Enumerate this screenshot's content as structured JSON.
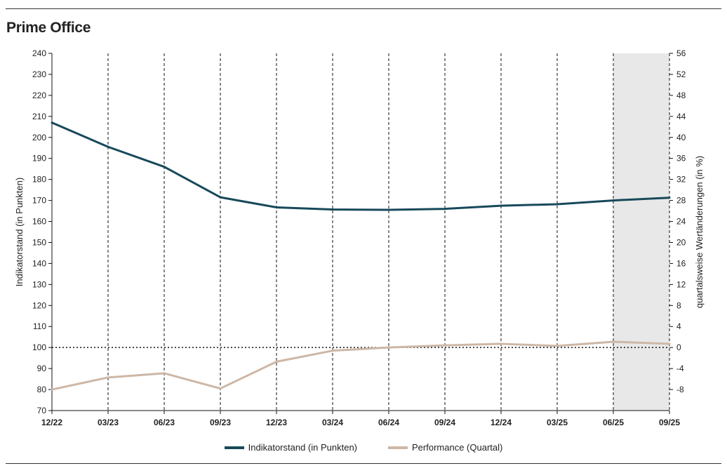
{
  "title": "Prime Office",
  "colors": {
    "index": "#17495a",
    "performance": "#cdb7a6",
    "shade": "#e8e8e8"
  },
  "chart_data": {
    "type": "line",
    "categories": [
      "12/22",
      "03/23",
      "06/23",
      "09/23",
      "12/23",
      "03/24",
      "06/24",
      "09/24",
      "12/24",
      "03/25",
      "06/25",
      "09/25"
    ],
    "yticks_left": [
      "240",
      "230",
      "220",
      "210",
      "200",
      "190",
      "180",
      "170",
      "160",
      "150",
      "140",
      "130",
      "120",
      "110",
      "100",
      "90",
      "80",
      "70"
    ],
    "yticks_right": [
      "56",
      "52",
      "48",
      "44",
      "40",
      "36",
      "32",
      "28",
      "24",
      "20",
      "16",
      "12",
      "8",
      "4",
      "0",
      "-4",
      "-8"
    ],
    "ylabel": "Indikatorstand (in Punkten)",
    "ylabel_right": "quartalsweise Wertänderungen (in %)",
    "ylim": [
      70,
      240
    ],
    "ylim_right": [
      -12,
      56
    ],
    "reference_line_y": 100,
    "shaded_x_range": [
      "06/25",
      "09/25"
    ],
    "series": [
      {
        "name": "Indikatorstand (in Punkten)",
        "axis": "left",
        "values": [
          207,
          195.5,
          186,
          171.5,
          166.7,
          165.7,
          165.5,
          166,
          167.5,
          168.2,
          170,
          171.3
        ]
      },
      {
        "name": "Performance (Quartal)",
        "axis": "right",
        "values": [
          -8,
          -5.7,
          -4.9,
          -7.8,
          -2.7,
          -0.6,
          0,
          0.4,
          0.7,
          0.3,
          1.1,
          0.7
        ]
      }
    ],
    "legend": [
      "Indikatorstand (in Punkten)",
      "Performance (Quartal)"
    ],
    "legend_position": "bottom"
  }
}
